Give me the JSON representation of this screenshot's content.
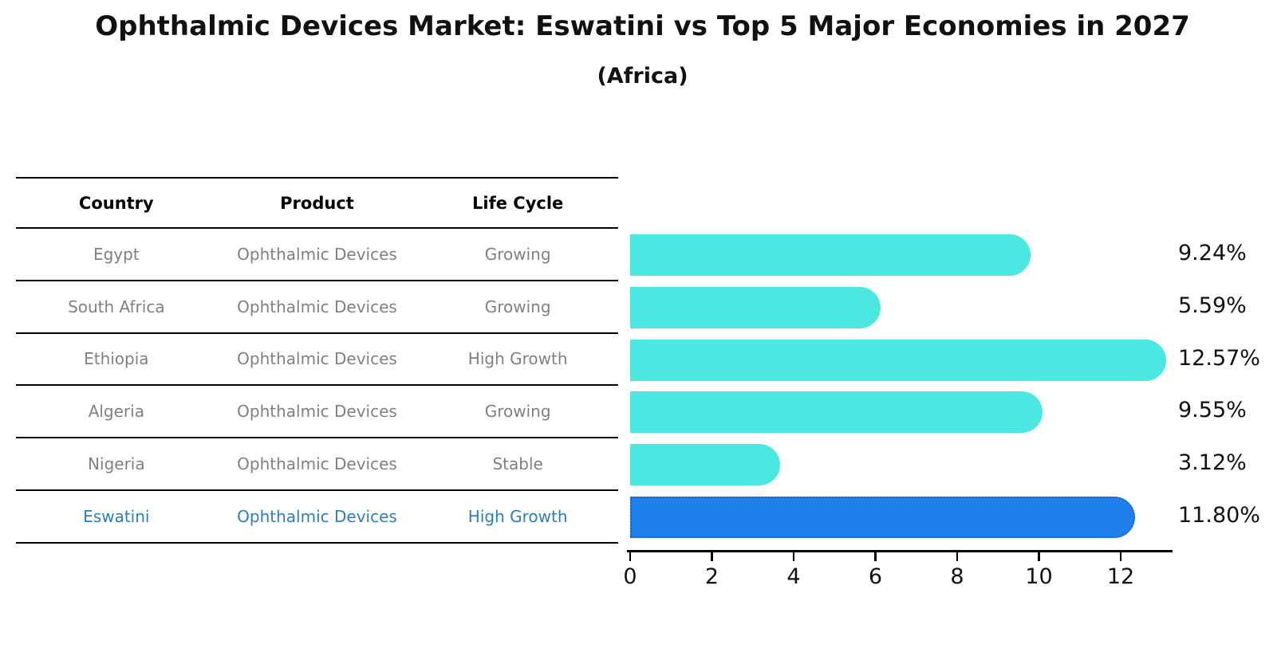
{
  "title": "Ophthalmic Devices Market: Eswatini vs Top 5 Major Economies in 2027",
  "subtitle": "(Africa)",
  "table": {
    "headers": [
      "Country",
      "Product",
      "Life Cycle"
    ],
    "rows": [
      {
        "country": "Egypt",
        "product": "Ophthalmic Devices",
        "life_cycle": "Growing",
        "highlight": false
      },
      {
        "country": "South Africa",
        "product": "Ophthalmic Devices",
        "life_cycle": "Growing",
        "highlight": false
      },
      {
        "country": "Ethiopia",
        "product": "Ophthalmic Devices",
        "life_cycle": "High Growth",
        "highlight": false
      },
      {
        "country": "Algeria",
        "product": "Ophthalmic Devices",
        "life_cycle": "Growing",
        "highlight": false
      },
      {
        "country": "Nigeria",
        "product": "Ophthalmic Devices",
        "life_cycle": "Stable",
        "highlight": false
      },
      {
        "country": "Eswatini",
        "product": "Ophthalmic Devices",
        "life_cycle": "High Growth",
        "highlight": true
      }
    ]
  },
  "chart_data": {
    "type": "bar",
    "orientation": "horizontal",
    "title": "Ophthalmic Devices Market: Eswatini vs Top 5 Major Economies in 2027",
    "subtitle": "(Africa)",
    "categories": [
      "Egypt",
      "South Africa",
      "Ethiopia",
      "Algeria",
      "Nigeria",
      "Eswatini"
    ],
    "values": [
      9.24,
      5.59,
      12.57,
      9.55,
      3.12,
      11.8
    ],
    "value_labels": [
      "9.24%",
      "5.59%",
      "12.57%",
      "9.55%",
      "3.12%",
      "11.80%"
    ],
    "xlabel": "",
    "ylabel": "",
    "xlim": [
      0,
      13.3
    ],
    "xticks": [
      0,
      2,
      4,
      6,
      8,
      10,
      12
    ],
    "grid": false,
    "legend": "none",
    "highlight_index": 5
  },
  "colors": {
    "bar": "#4BE7E1",
    "highlight_bar": "#1F80EC",
    "highlight_border": "#2361C9",
    "row_text": "#808080",
    "highlight_text": "#2E7EBD",
    "axis": "#000000"
  }
}
